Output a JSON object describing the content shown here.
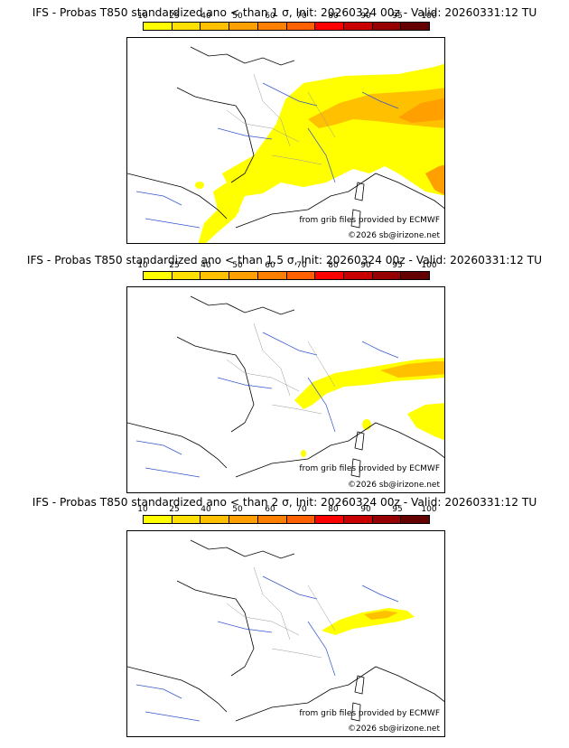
{
  "scale": {
    "labels": [
      "10",
      "25",
      "40",
      "50",
      "60",
      "70",
      "80",
      "90",
      "95",
      "100"
    ],
    "colors": [
      "#ffff00",
      "#ffe000",
      "#ffc000",
      "#ffa000",
      "#ff8000",
      "#ff6000",
      "#ff0000",
      "#c80000",
      "#960000",
      "#640000"
    ]
  },
  "panels": [
    {
      "title": "IFS - Probas T850  standardized ano < than 1 σ, Init: 20260324 00z - Valid: 20260331:12 TU",
      "credit_source": "from grib files provided by ECMWF",
      "credit_copyright": "©2026 sb@irizone.net"
    },
    {
      "title": "IFS - Probas T850  standardized ano < than 1.5 σ, Init: 20260324 00z - Valid: 20260331:12 TU",
      "credit_source": "from grib files provided by ECMWF",
      "credit_copyright": "©2026 sb@irizone.net"
    },
    {
      "title": "IFS - Probas T850  standardized ano < than 2 σ, Init: 20260324 00z - Valid: 20260331:12 TU",
      "credit_source": "from grib files provided by ECMWF",
      "credit_copyright": "©2026 sb@irizone.net"
    }
  ]
}
